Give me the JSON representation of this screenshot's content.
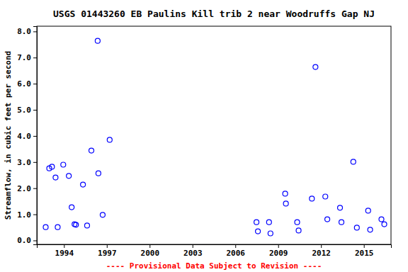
{
  "chart_data": {
    "type": "scatter",
    "title": "USGS 01443260 EB Paulins Kill trib 2 near Woodruffs Gap NJ",
    "y_label": "Streamflow, in cubic feet per second",
    "annotations": [
      "---- Provisional Data Subject to Revision ----"
    ],
    "x": [
      1992.72,
      1992.97,
      1993.16,
      1993.41,
      1993.56,
      1993.95,
      1994.34,
      1994.54,
      1994.74,
      1994.84,
      1995.33,
      1995.62,
      1995.92,
      1996.36,
      1996.41,
      1996.71,
      1997.2,
      2007.48,
      2007.58,
      2008.36,
      2008.46,
      2009.49,
      2009.54,
      2010.33,
      2010.43,
      2011.36,
      2011.61,
      2012.3,
      2012.44,
      2013.33,
      2013.43,
      2014.26,
      2014.51,
      2015.3,
      2015.44,
      2016.23,
      2016.43
    ],
    "values": [
      0.51,
      2.76,
      2.82,
      2.41,
      0.51,
      2.9,
      2.47,
      1.27,
      0.62,
      0.6,
      2.14,
      0.57,
      3.44,
      7.64,
      2.57,
      0.98,
      3.85,
      0.7,
      0.35,
      0.7,
      0.27,
      1.79,
      1.41,
      0.7,
      0.38,
      1.6,
      6.64,
      1.68,
      0.81,
      1.25,
      0.7,
      3.01,
      0.49,
      1.14,
      0.41,
      0.81,
      0.62
    ],
    "color": "#0000ff",
    "marker": "circle",
    "xlim": [
      1992.1,
      2016.9
    ],
    "xticks": [
      1994,
      1997,
      2000,
      2003,
      2006,
      2009,
      2012,
      2015
    ],
    "ylim": [
      -0.15,
      8.2
    ],
    "yticks": [
      {
        "value": 0,
        "label": "0.0"
      },
      {
        "value": 1,
        "label": "1.0"
      },
      {
        "value": 2,
        "label": "2.0"
      },
      {
        "value": 3,
        "label": "3.0"
      },
      {
        "value": 4,
        "label": "4.0"
      },
      {
        "value": 5,
        "label": "5.0"
      },
      {
        "value": 6,
        "label": "6.0"
      },
      {
        "value": 7,
        "label": "7.0"
      },
      {
        "value": 8,
        "label": "8.0"
      }
    ],
    "grid": false
  }
}
